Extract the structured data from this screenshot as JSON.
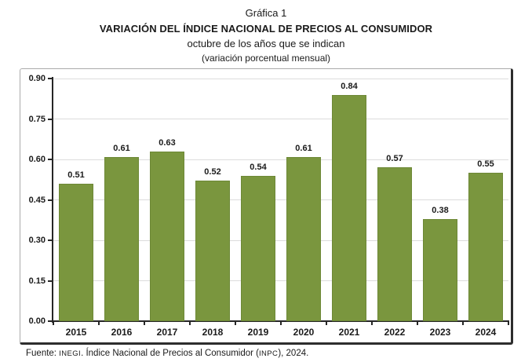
{
  "header": {
    "figure_label": "Gráfica 1"
  },
  "chart_data": {
    "type": "bar",
    "title": "VARIACIÓN DEL ÍNDICE NACIONAL DE PRECIOS AL CONSUMIDOR",
    "subtitle": "octubre de los años que se indican",
    "unit_note": "(variación porcentual mensual)",
    "xlabel": "",
    "ylabel": "",
    "categories": [
      "2015",
      "2016",
      "2017",
      "2018",
      "2019",
      "2020",
      "2021",
      "2022",
      "2023",
      "2024"
    ],
    "values": [
      0.51,
      0.61,
      0.63,
      0.52,
      0.54,
      0.61,
      0.84,
      0.57,
      0.38,
      0.55
    ],
    "ylim": [
      0,
      0.9
    ],
    "ytick_step": 0.15,
    "ytick_labels": [
      "0.00",
      "0.15",
      "0.30",
      "0.45",
      "0.60",
      "0.75",
      "0.90"
    ],
    "grid": true,
    "legend": false,
    "bar_color": "#7a963e",
    "bar_border_color": "#6d8836",
    "gridline_color": "#dcdcdc",
    "axis_color": "#262626"
  },
  "footer": {
    "prefix": "Fuente: ",
    "inegi": "INEGI",
    "mid": ". Índice Nacional de Precios al Consumidor (",
    "inpc": "INPC",
    "suffix": "), 2024."
  }
}
